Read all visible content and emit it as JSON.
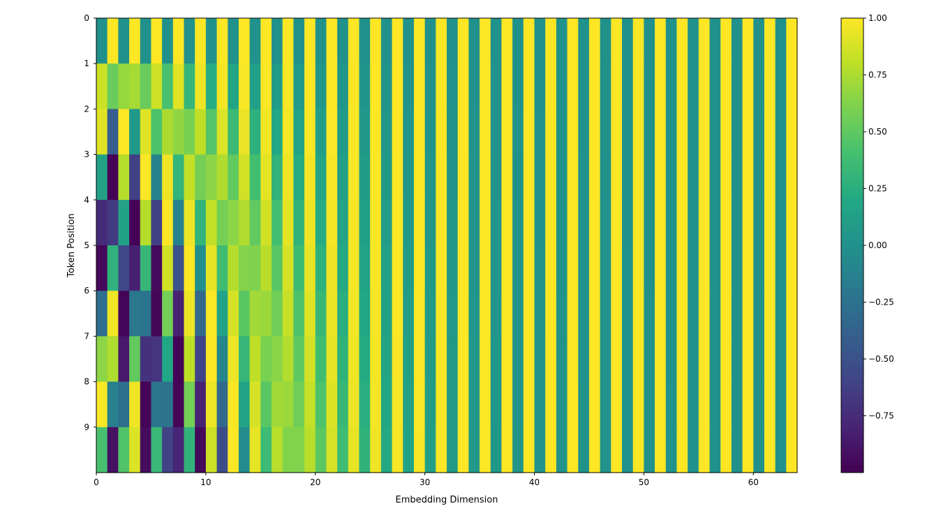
{
  "chart_data": {
    "type": "heatmap",
    "title": "",
    "xlabel": "Embedding Dimension",
    "ylabel": "Token Position",
    "rows": 10,
    "cols": 64,
    "xlim": [
      0,
      64
    ],
    "ylim": [
      0,
      10
    ],
    "xticks": [
      "0",
      "10",
      "20",
      "30",
      "40",
      "50",
      "60"
    ],
    "yticks": [
      "0",
      "1",
      "2",
      "3",
      "4",
      "5",
      "6",
      "7",
      "8",
      "9"
    ],
    "colormap": "viridis",
    "color_range": [
      -1.0,
      1.0
    ],
    "colorbar_ticks": [
      "1.00",
      "0.75",
      "0.50",
      "0.25",
      "0.00",
      "−0.25",
      "−0.50",
      "−0.75"
    ],
    "values": "positional encoding: PE(pos, 2i) = sin(pos / 10000^(2i/64)), PE(pos, 2i+1) = cos(pos / 10000^(2i/64)) for pos 0..9, dimension 0..63",
    "grid": false
  }
}
